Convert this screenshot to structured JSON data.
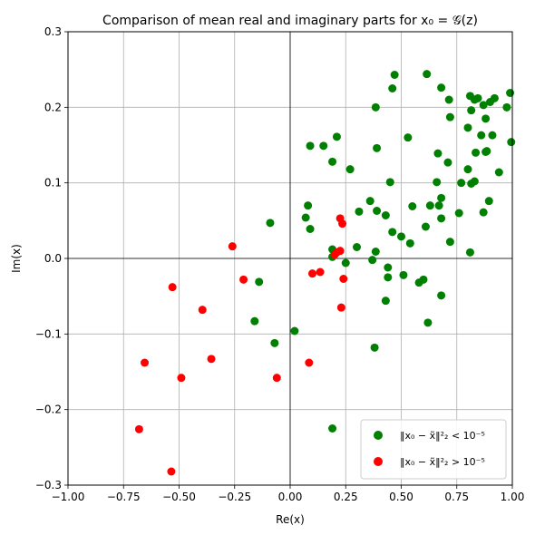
{
  "chart_data": {
    "type": "scatter",
    "title": "Comparison of mean real and imaginary parts for x₀ = 𝒢(z)",
    "xlabel": "Re(x)",
    "ylabel": "Im(x)",
    "xlim": [
      -1.0,
      1.0
    ],
    "ylim": [
      -0.3,
      0.3
    ],
    "xticks": [
      -1.0,
      -0.75,
      -0.5,
      -0.25,
      0.0,
      0.25,
      0.5,
      0.75,
      1.0
    ],
    "yticks": [
      -0.3,
      -0.2,
      -0.1,
      0.0,
      0.1,
      0.2,
      0.3
    ],
    "xtick_labels": [
      "−1.00",
      "−0.75",
      "−0.50",
      "−0.25",
      "0.00",
      "0.25",
      "0.50",
      "0.75",
      "1.00"
    ],
    "ytick_labels": [
      "−0.3",
      "−0.2",
      "−0.1",
      "0.0",
      "0.1",
      "0.2",
      "0.3"
    ],
    "grid": true,
    "legend_position": "lower-right",
    "series": [
      {
        "name": "‖x₀ − x̃‖²₂ < 10⁻⁵",
        "color": "#008000",
        "points": [
          [
            0.47,
            0.243
          ],
          [
            0.615,
            0.244
          ],
          [
            0.46,
            0.225
          ],
          [
            0.68,
            0.226
          ],
          [
            0.715,
            0.21
          ],
          [
            0.81,
            0.215
          ],
          [
            0.83,
            0.21
          ],
          [
            0.845,
            0.212
          ],
          [
            0.87,
            0.203
          ],
          [
            0.9,
            0.207
          ],
          [
            0.92,
            0.212
          ],
          [
            0.975,
            0.2
          ],
          [
            0.99,
            0.219
          ],
          [
            0.385,
            0.2
          ],
          [
            0.815,
            0.196
          ],
          [
            0.72,
            0.187
          ],
          [
            0.88,
            0.185
          ],
          [
            0.8,
            0.173
          ],
          [
            0.86,
            0.163
          ],
          [
            0.91,
            0.163
          ],
          [
            0.53,
            0.16
          ],
          [
            0.995,
            0.154
          ],
          [
            0.21,
            0.161
          ],
          [
            0.09,
            0.149
          ],
          [
            0.15,
            0.149
          ],
          [
            0.39,
            0.146
          ],
          [
            0.665,
            0.139
          ],
          [
            0.835,
            0.14
          ],
          [
            0.88,
            0.141
          ],
          [
            0.885,
            0.142
          ],
          [
            0.19,
            0.128
          ],
          [
            0.71,
            0.127
          ],
          [
            0.27,
            0.118
          ],
          [
            0.8,
            0.118
          ],
          [
            0.94,
            0.114
          ],
          [
            0.45,
            0.101
          ],
          [
            0.66,
            0.101
          ],
          [
            0.77,
            0.1
          ],
          [
            0.815,
            0.099
          ],
          [
            0.83,
            0.102
          ],
          [
            0.36,
            0.076
          ],
          [
            0.68,
            0.08
          ],
          [
            0.895,
            0.076
          ],
          [
            0.08,
            0.07
          ],
          [
            0.63,
            0.07
          ],
          [
            0.67,
            0.07
          ],
          [
            0.55,
            0.069
          ],
          [
            0.31,
            0.062
          ],
          [
            0.39,
            0.063
          ],
          [
            0.43,
            0.057
          ],
          [
            0.07,
            0.054
          ],
          [
            0.68,
            0.053
          ],
          [
            0.76,
            0.06
          ],
          [
            0.87,
            0.061
          ],
          [
            -0.09,
            0.047
          ],
          [
            0.09,
            0.039
          ],
          [
            0.61,
            0.042
          ],
          [
            0.46,
            0.035
          ],
          [
            0.5,
            0.029
          ],
          [
            0.54,
            0.02
          ],
          [
            0.72,
            0.022
          ],
          [
            0.19,
            0.012
          ],
          [
            0.3,
            0.015
          ],
          [
            0.385,
            0.009
          ],
          [
            0.81,
            0.008
          ],
          [
            0.19,
            0.002
          ],
          [
            0.37,
            -0.002
          ],
          [
            0.25,
            -0.006
          ],
          [
            0.44,
            -0.012
          ],
          [
            0.44,
            -0.025
          ],
          [
            0.51,
            -0.022
          ],
          [
            -0.14,
            -0.031
          ],
          [
            0.58,
            -0.032
          ],
          [
            0.6,
            -0.028
          ],
          [
            0.68,
            -0.049
          ],
          [
            0.43,
            -0.056
          ],
          [
            -0.16,
            -0.083
          ],
          [
            0.62,
            -0.085
          ],
          [
            0.02,
            -0.096
          ],
          [
            -0.07,
            -0.112
          ],
          [
            0.38,
            -0.118
          ],
          [
            0.19,
            -0.225
          ]
        ]
      },
      {
        "name": "‖x₀ − x̃‖²₂ > 10⁻⁵",
        "color": "#ff0000",
        "points": [
          [
            -0.26,
            0.016
          ],
          [
            0.225,
            0.053
          ],
          [
            0.235,
            0.046
          ],
          [
            0.225,
            0.01
          ],
          [
            0.21,
            0.008
          ],
          [
            0.2,
            0.005
          ],
          [
            -0.21,
            -0.028
          ],
          [
            0.1,
            -0.02
          ],
          [
            0.135,
            -0.018
          ],
          [
            0.24,
            -0.027
          ],
          [
            -0.53,
            -0.038
          ],
          [
            -0.395,
            -0.068
          ],
          [
            0.23,
            -0.065
          ],
          [
            -0.355,
            -0.133
          ],
          [
            -0.655,
            -0.138
          ],
          [
            -0.49,
            -0.158
          ],
          [
            -0.06,
            -0.158
          ],
          [
            0.085,
            -0.138
          ],
          [
            -0.68,
            -0.226
          ],
          [
            -0.535,
            -0.282
          ]
        ]
      }
    ]
  }
}
